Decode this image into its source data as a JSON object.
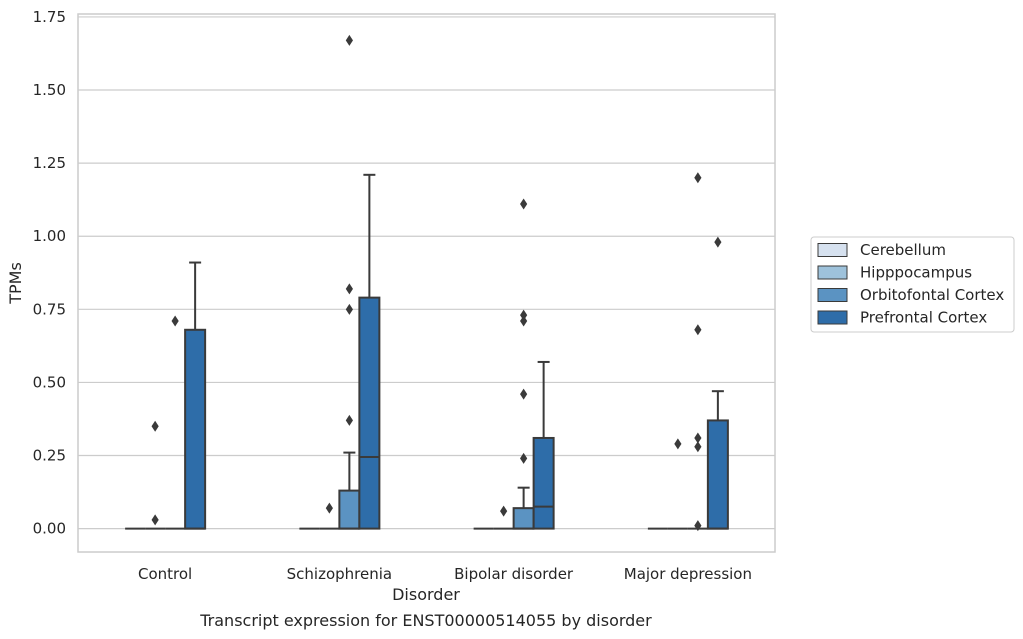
{
  "chart_data": {
    "type": "box",
    "caption": "Transcript expression for ENST00000514055 by disorder",
    "xlabel": "Disorder",
    "ylabel": "TPMs",
    "ylim": [
      -0.08,
      1.76
    ],
    "yticks": [
      0.0,
      0.25,
      0.5,
      0.75,
      1.0,
      1.25,
      1.5,
      1.75
    ],
    "ytick_labels": [
      "0.00",
      "0.25",
      "0.50",
      "0.75",
      "1.00",
      "1.25",
      "1.50",
      "1.75"
    ],
    "grid": "horizontal",
    "legend_position": "right",
    "categories": [
      "Control",
      "Schizophrenia",
      "Bipolar disorder",
      "Major depression"
    ],
    "series": [
      {
        "name": "Cerebellum",
        "color": "#d6e1ef",
        "boxes": [
          {
            "q1": 0,
            "median": 0,
            "q3": 0,
            "whisker_low": 0,
            "whisker_high": 0,
            "outliers": []
          },
          {
            "q1": 0,
            "median": 0,
            "q3": 0,
            "whisker_low": 0,
            "whisker_high": 0,
            "outliers": []
          },
          {
            "q1": 0,
            "median": 0,
            "q3": 0,
            "whisker_low": 0,
            "whisker_high": 0,
            "outliers": []
          },
          {
            "q1": 0,
            "median": 0,
            "q3": 0,
            "whisker_low": 0,
            "whisker_high": 0,
            "outliers": []
          }
        ]
      },
      {
        "name": "Hipppocampus",
        "color": "#9ec2db",
        "boxes": [
          {
            "q1": 0,
            "median": 0,
            "q3": 0,
            "whisker_low": 0,
            "whisker_high": 0,
            "outliers": [
              0.03,
              0.35
            ]
          },
          {
            "q1": 0,
            "median": 0,
            "q3": 0,
            "whisker_low": 0,
            "whisker_high": 0,
            "outliers": [
              0.07
            ]
          },
          {
            "q1": 0,
            "median": 0,
            "q3": 0,
            "whisker_low": 0,
            "whisker_high": 0,
            "outliers": [
              0.06
            ]
          },
          {
            "q1": 0,
            "median": 0,
            "q3": 0,
            "whisker_low": 0,
            "whisker_high": 0,
            "outliers": [
              0.29
            ]
          }
        ]
      },
      {
        "name": "Orbitofontal Cortex",
        "color": "#5b93c2",
        "boxes": [
          {
            "q1": 0,
            "median": 0,
            "q3": 0,
            "whisker_low": 0,
            "whisker_high": 0,
            "outliers": [
              0.71
            ]
          },
          {
            "q1": 0,
            "median": 0,
            "q3": 0.13,
            "whisker_low": 0,
            "whisker_high": 0.26,
            "outliers": [
              0.37,
              0.75,
              0.82,
              1.67
            ]
          },
          {
            "q1": 0,
            "median": 0,
            "q3": 0.07,
            "whisker_low": 0,
            "whisker_high": 0.14,
            "outliers": [
              0.24,
              0.46,
              0.71,
              0.73,
              1.11
            ]
          },
          {
            "q1": 0,
            "median": 0,
            "q3": 0,
            "whisker_low": 0,
            "whisker_high": 0,
            "outliers": [
              0.01,
              0.28,
              0.31,
              0.68,
              1.2
            ]
          }
        ]
      },
      {
        "name": "Prefrontal Cortex",
        "color": "#2e6da9",
        "boxes": [
          {
            "q1": 0,
            "median": 0,
            "q3": 0.68,
            "whisker_low": 0,
            "whisker_high": 0.91,
            "outliers": []
          },
          {
            "q1": 0,
            "median": 0.245,
            "q3": 0.79,
            "whisker_low": 0,
            "whisker_high": 1.21,
            "outliers": []
          },
          {
            "q1": 0,
            "median": 0.075,
            "q3": 0.31,
            "whisker_low": 0,
            "whisker_high": 0.57,
            "outliers": []
          },
          {
            "q1": 0,
            "median": 0,
            "q3": 0.37,
            "whisker_low": 0,
            "whisker_high": 0.47,
            "outliers": [
              0.98
            ]
          }
        ]
      }
    ]
  }
}
